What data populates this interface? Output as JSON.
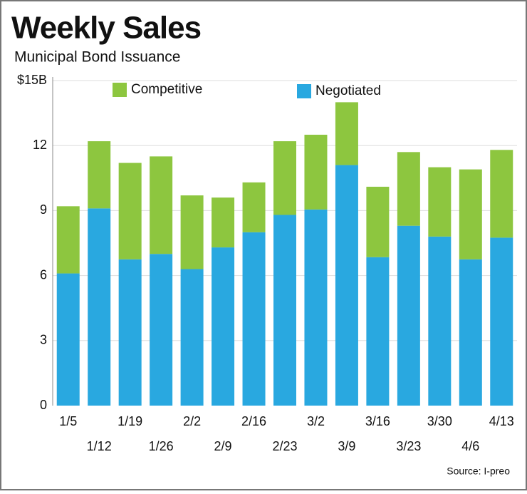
{
  "chart_data": {
    "type": "stacked_bar",
    "title": "Weekly Sales",
    "subtitle": "Municipal Bond Issuance",
    "source": "Source: I-preo",
    "categories": [
      "1/5",
      "1/12",
      "1/19",
      "1/26",
      "2/2",
      "2/9",
      "2/16",
      "2/23",
      "3/2",
      "3/9",
      "3/16",
      "3/23",
      "3/30",
      "4/6",
      "4/13"
    ],
    "series": [
      {
        "name": "Negotiated",
        "color": "#29a8e0",
        "values": [
          6.1,
          9.1,
          6.75,
          7.0,
          6.3,
          7.3,
          8.0,
          8.8,
          9.05,
          11.1,
          6.85,
          8.3,
          7.8,
          6.75,
          7.75
        ]
      },
      {
        "name": "Competitive",
        "color": "#8dc63f",
        "values": [
          3.1,
          3.1,
          4.45,
          4.5,
          3.4,
          2.3,
          2.3,
          3.4,
          3.45,
          2.9,
          3.25,
          3.4,
          3.2,
          4.15,
          4.05
        ]
      }
    ],
    "ylim": [
      0,
      15
    ],
    "yticks": [
      0,
      3,
      6,
      9,
      12,
      {
        "value": 15,
        "label": "$15B"
      }
    ],
    "grid": true
  }
}
